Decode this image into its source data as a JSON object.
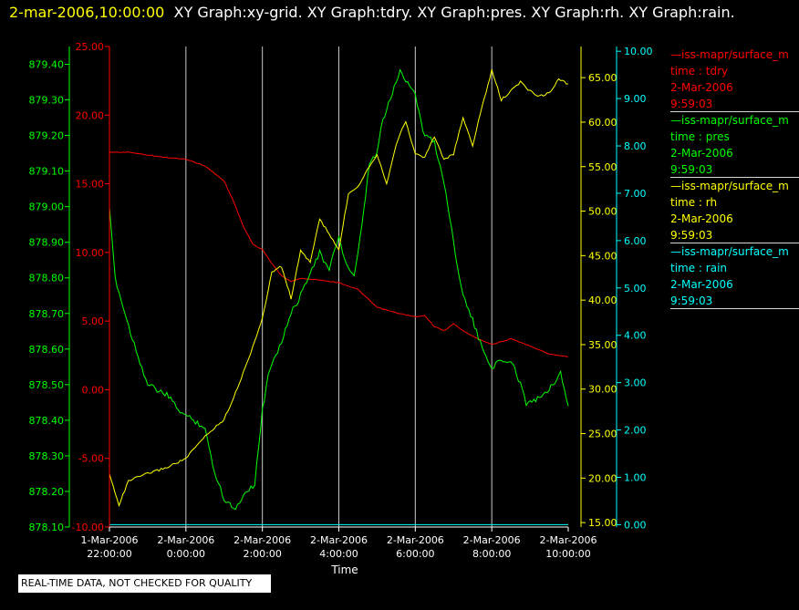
{
  "header": {
    "timestamp": "2-mar-2006,10:00:00",
    "graphs": "XY Graph:xy-grid.  XY Graph:tdry.  XY Graph:pres.  XY Graph:rh.  XY Graph:rain."
  },
  "footer": {
    "notice": "REAL-TIME DATA, NOT CHECKED FOR QUALITY"
  },
  "colors": {
    "tdry": "#ff0000",
    "pres": "#00ff00",
    "rh": "#ffff00",
    "rain": "#00ffff",
    "grid": "#c8c8c8"
  },
  "legend": [
    {
      "name": "iss-mapr/surface_m",
      "line1": "time : tdry",
      "date": "2-Mar-2006",
      "time": "9:59:03",
      "color": "#ff0000"
    },
    {
      "name": "iss-mapr/surface_m",
      "line1": "time : pres",
      "date": "2-Mar-2006",
      "time": "9:59:03",
      "color": "#00ff00"
    },
    {
      "name": "iss-mapr/surface_m",
      "line1": "time : rh",
      "date": "2-Mar-2006",
      "time": "9:59:03",
      "color": "#ffff00"
    },
    {
      "name": "iss-mapr/surface_m",
      "line1": "time : rain",
      "date": "2-Mar-2006",
      "time": "9:59:03",
      "color": "#00ffff"
    }
  ],
  "chart_data": {
    "type": "line",
    "xlabel": "Time",
    "x_ticks": [
      {
        "date": "1-Mar-2006",
        "time": "22:00:00",
        "hour": 22
      },
      {
        "date": "2-Mar-2006",
        "time": "0:00:00",
        "hour": 24
      },
      {
        "date": "2-Mar-2006",
        "time": "2:00:00",
        "hour": 26
      },
      {
        "date": "2-Mar-2006",
        "time": "4:00:00",
        "hour": 28
      },
      {
        "date": "2-Mar-2006",
        "time": "6:00:00",
        "hour": 30
      },
      {
        "date": "2-Mar-2006",
        "time": "8:00:00",
        "hour": 32
      },
      {
        "date": "2-Mar-2006",
        "time": "10:00:00",
        "hour": 34
      }
    ],
    "x_range_hours_since_midnight_mar1": [
      22,
      34
    ],
    "grid": true,
    "axes": {
      "tdry": {
        "range": [
          -10,
          25
        ],
        "ticks": [
          "25.00",
          "20.00",
          "15.00",
          "10.00",
          "5.00",
          "0.00",
          "-5.00",
          "-10.00"
        ]
      },
      "pres": {
        "range": [
          878.1,
          879.45
        ],
        "ticks": [
          "879.40",
          "879.30",
          "879.20",
          "879.10",
          "879.00",
          "878.90",
          "878.80",
          "878.70",
          "878.60",
          "878.50",
          "878.40",
          "878.30",
          "878.20",
          "878.10"
        ]
      },
      "rh": {
        "range": [
          14.5,
          68.5
        ],
        "ticks": [
          "65.00",
          "60.00",
          "55.00",
          "50.00",
          "45.00",
          "40.00",
          "35.00",
          "30.00",
          "25.00",
          "20.00",
          "15.00"
        ]
      },
      "rain": {
        "range": [
          -0.05,
          10.1
        ],
        "ticks": [
          "10.00",
          "9.00",
          "8.00",
          "7.00",
          "6.00",
          "5.00",
          "4.00",
          "3.00",
          "2.00",
          "1.00",
          "0.00"
        ]
      }
    },
    "series": [
      {
        "name": "tdry",
        "axis": "tdry",
        "x": [
          22.0,
          22.5,
          23.0,
          23.5,
          24.0,
          24.5,
          25.0,
          25.25,
          25.5,
          25.75,
          26.0,
          26.25,
          26.5,
          26.75,
          27.0,
          27.5,
          28.0,
          28.5,
          29.0,
          29.5,
          30.0,
          30.25,
          30.5,
          30.75,
          31.0,
          31.25,
          31.5,
          31.75,
          32.0,
          32.5,
          33.0,
          33.5,
          34.0
        ],
        "values": [
          17.3,
          17.3,
          17.1,
          16.9,
          16.8,
          16.3,
          15.2,
          13.7,
          11.9,
          10.6,
          10.2,
          9.2,
          8.3,
          7.9,
          8.1,
          8.0,
          7.8,
          7.3,
          6.0,
          5.6,
          5.3,
          5.4,
          4.6,
          4.3,
          4.8,
          4.3,
          3.9,
          3.6,
          3.3,
          3.7,
          3.2,
          2.6,
          2.4
        ]
      },
      {
        "name": "pres",
        "axis": "pres",
        "x": [
          22.0,
          22.15,
          22.35,
          22.6,
          23.0,
          23.5,
          23.9,
          24.2,
          24.5,
          24.7,
          25.0,
          25.3,
          25.55,
          25.8,
          26.0,
          26.2,
          26.5,
          26.75,
          27.0,
          27.25,
          27.5,
          27.75,
          28.0,
          28.15,
          28.4,
          28.6,
          28.8,
          29.0,
          29.1,
          29.3,
          29.6,
          30.0,
          30.2,
          30.5,
          30.75,
          31.0,
          31.25,
          31.5,
          31.75,
          32.0,
          32.3,
          32.6,
          32.9,
          33.2,
          33.5,
          33.8,
          34.0
        ],
        "values": [
          878.99,
          878.8,
          878.72,
          878.63,
          878.5,
          878.47,
          878.42,
          878.4,
          878.38,
          878.27,
          878.18,
          878.15,
          878.2,
          878.22,
          878.43,
          878.55,
          878.62,
          878.7,
          878.75,
          878.82,
          878.87,
          878.82,
          878.92,
          878.85,
          878.8,
          878.94,
          879.12,
          879.15,
          879.22,
          879.29,
          879.38,
          879.32,
          879.21,
          879.18,
          879.07,
          878.9,
          878.75,
          878.68,
          878.6,
          878.55,
          878.57,
          878.55,
          878.45,
          878.46,
          878.49,
          878.53,
          878.44
        ]
      },
      {
        "name": "rh",
        "axis": "rh",
        "x": [
          22.0,
          22.25,
          22.5,
          23.0,
          23.5,
          24.0,
          24.5,
          25.0,
          25.25,
          25.5,
          25.75,
          26.0,
          26.25,
          26.5,
          26.75,
          27.0,
          27.25,
          27.5,
          27.75,
          28.0,
          28.25,
          28.5,
          28.75,
          29.0,
          29.25,
          29.5,
          29.75,
          30.0,
          30.25,
          30.5,
          30.75,
          31.0,
          31.25,
          31.5,
          31.75,
          32.0,
          32.25,
          32.5,
          32.75,
          33.0,
          33.25,
          33.5,
          33.75,
          34.0
        ],
        "values": [
          20.4,
          17.0,
          19.7,
          20.5,
          21.2,
          22.2,
          24.7,
          26.6,
          29.1,
          31.8,
          34.8,
          37.9,
          43.2,
          43.8,
          40.2,
          45.5,
          44.3,
          49.1,
          47.4,
          45.6,
          52.0,
          52.8,
          54.7,
          56.4,
          53.1,
          57.6,
          60.1,
          56.4,
          56.1,
          58.4,
          55.8,
          56.4,
          60.5,
          57.4,
          61.8,
          65.8,
          62.5,
          63.5,
          64.5,
          63.5,
          62.9,
          63.3,
          64.8,
          64.3
        ]
      },
      {
        "name": "rain",
        "axis": "rain",
        "x": [
          22.0,
          34.0
        ],
        "values": [
          0.0,
          0.0
        ]
      }
    ]
  }
}
